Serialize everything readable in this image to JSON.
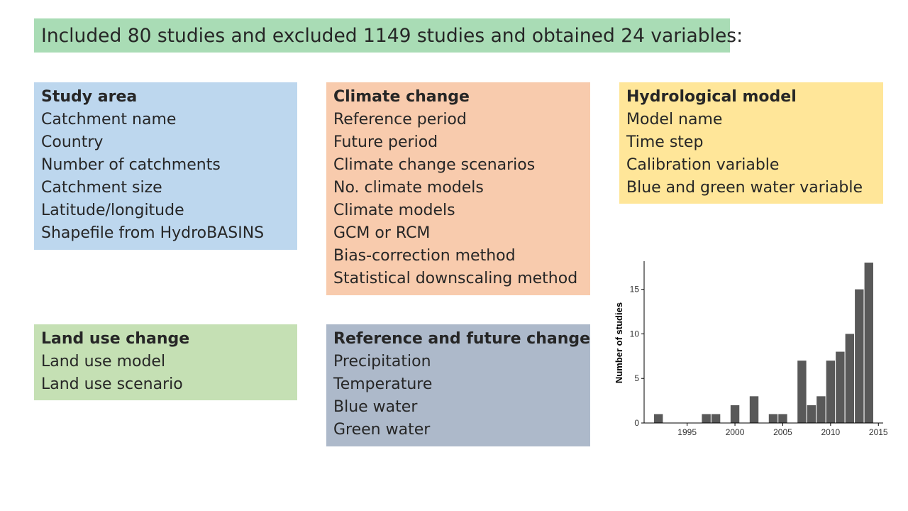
{
  "banner": {
    "text": "Included 80 studies and excluded 1149 studies and obtained 24 variables:"
  },
  "boxes": {
    "study_area": {
      "title": "Study area",
      "items": [
        "Catchment name",
        "Country",
        "Number of catchments",
        "Catchment size",
        "Latitude/longitude",
        "Shapefile from HydroBASINS"
      ],
      "color": "#bdd7ee"
    },
    "climate_change": {
      "title": "Climate change",
      "items": [
        "Reference period",
        "Future period",
        "Climate change scenarios",
        "No. climate models",
        "Climate models",
        "GCM or RCM",
        "Bias-correction method",
        "Statistical downscaling method"
      ],
      "color": "#f8cbad"
    },
    "hydrological_model": {
      "title": "Hydrological model",
      "items": [
        "Model name",
        "Time step",
        "Calibration variable",
        "Blue and green water variable"
      ],
      "color": "#ffe699"
    },
    "land_use_change": {
      "title": "Land use change",
      "items": [
        "Land use model",
        "Land use scenario"
      ],
      "color": "#c5e0b4"
    },
    "reference_future": {
      "title": "Reference and future change",
      "items": [
        "Precipitation",
        "Temperature",
        "Blue water",
        "Green water"
      ],
      "color": "#adb9ca"
    }
  },
  "chart_data": {
    "type": "bar",
    "x": [
      1992,
      1997,
      1998,
      2000,
      2002,
      2004,
      2005,
      2007,
      2008,
      2009,
      2010,
      2011,
      2012,
      2013,
      2014
    ],
    "values": [
      1,
      1,
      1,
      2,
      3,
      1,
      1,
      7,
      2,
      3,
      7,
      8,
      10,
      15,
      18
    ],
    "title": "",
    "xlabel": "",
    "ylabel": "Number of studies",
    "x_ticks": [
      "1995",
      "2000",
      "2005",
      "2010",
      "2015"
    ],
    "y_ticks": [
      "0",
      "5",
      "10",
      "15"
    ],
    "xlim": [
      1990.5,
      2015.5
    ],
    "ylim": [
      0,
      18
    ],
    "grid": false,
    "bar_color": "#595959"
  }
}
